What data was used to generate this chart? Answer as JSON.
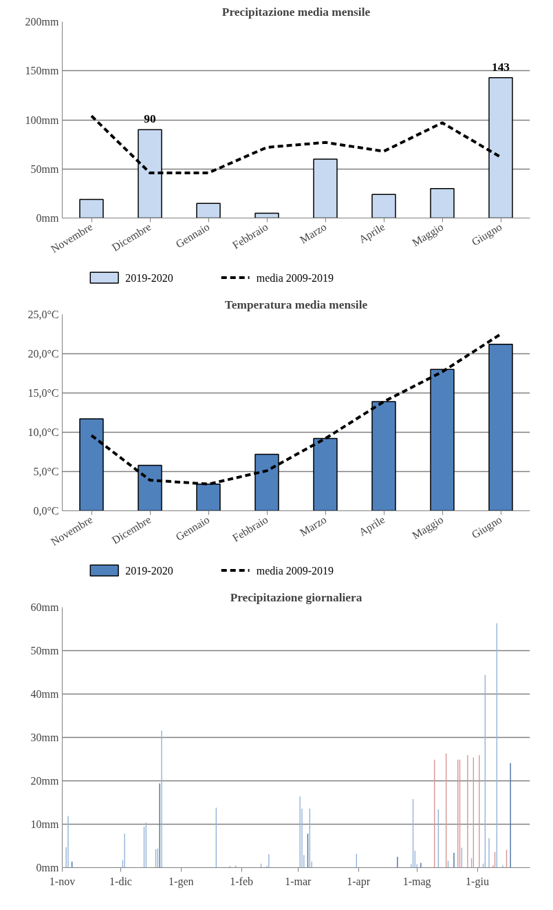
{
  "chart_data": [
    {
      "type": "bar",
      "title": "Precipitazione media mensile",
      "categories": [
        "Novembre",
        "Dicembre",
        "Gennaio",
        "Febbraio",
        "Marzo",
        "Aprile",
        "Maggio",
        "Giugno"
      ],
      "ylim": [
        0,
        200
      ],
      "yticks": [
        {
          "value": 0,
          "label": "0mm"
        },
        {
          "value": 50,
          "label": "50mm"
        },
        {
          "value": 100,
          "label": "100mm"
        },
        {
          "value": 150,
          "label": "150mm"
        },
        {
          "value": 200,
          "label": "200mm"
        }
      ],
      "grid": "y",
      "legend": "bottom",
      "series": [
        {
          "name": "2019-2020",
          "type": "bar",
          "color": "#c6d9f1",
          "values": [
            19,
            90,
            15,
            5,
            60,
            24,
            30,
            143
          ],
          "value_labels": [
            null,
            "90",
            null,
            null,
            null,
            null,
            null,
            "143"
          ]
        },
        {
          "name": "media 2009-2019",
          "type": "line",
          "color": "#000000",
          "line_style": "dashed",
          "values": [
            104,
            46,
            46,
            72,
            77,
            68,
            97,
            62
          ]
        }
      ]
    },
    {
      "type": "bar",
      "title": "Temperatura media mensile",
      "categories": [
        "Novembre",
        "Dicembre",
        "Gennaio",
        "Febbraio",
        "Marzo",
        "Aprile",
        "Maggio",
        "Giugno"
      ],
      "ylim": [
        0,
        25
      ],
      "yticks": [
        {
          "value": 0,
          "label": "0,0°C"
        },
        {
          "value": 5,
          "label": "5,0°C"
        },
        {
          "value": 10,
          "label": "10,0°C"
        },
        {
          "value": 15,
          "label": "15,0°C"
        },
        {
          "value": 20,
          "label": "20,0°C"
        },
        {
          "value": 25,
          "label": "25,0°C"
        }
      ],
      "grid": "y",
      "legend": "bottom",
      "series": [
        {
          "name": "2019-2020",
          "type": "bar",
          "color": "#4f81bd",
          "values": [
            11.7,
            5.8,
            3.4,
            7.2,
            9.2,
            13.9,
            18.0,
            21.2
          ]
        },
        {
          "name": "media 2009-2019",
          "type": "line",
          "color": "#000000",
          "line_style": "dashed",
          "values": [
            9.6,
            3.9,
            3.4,
            5.1,
            9.2,
            13.9,
            17.7,
            22.5
          ]
        }
      ]
    },
    {
      "type": "bar",
      "title": "Precipitazione giornaliera",
      "xlim": [
        "2019-11-01",
        "2020-06-28"
      ],
      "xticks": [
        {
          "value": "2019-11-01",
          "label": "1-nov"
        },
        {
          "value": "2019-12-01",
          "label": "1-dic"
        },
        {
          "value": "2020-01-01",
          "label": "1-gen"
        },
        {
          "value": "2020-02-01",
          "label": "1-feb"
        },
        {
          "value": "2020-03-01",
          "label": "1-mar"
        },
        {
          "value": "2020-04-01",
          "label": "1-apr"
        },
        {
          "value": "2020-05-01",
          "label": "1-mag"
        },
        {
          "value": "2020-06-01",
          "label": "1-giu"
        }
      ],
      "ylim": [
        0,
        60
      ],
      "yticks": [
        {
          "value": 0,
          "label": "0mm"
        },
        {
          "value": 10,
          "label": "10mm"
        },
        {
          "value": 20,
          "label": "20mm"
        },
        {
          "value": 30,
          "label": "30mm"
        },
        {
          "value": 40,
          "label": "40mm"
        },
        {
          "value": 50,
          "label": "50mm"
        },
        {
          "value": 60,
          "label": "60mm"
        }
      ],
      "grid": "y",
      "x": [
        "2019-11-03",
        "2019-11-04",
        "2019-11-06",
        "2019-12-02",
        "2019-12-03",
        "2019-12-13",
        "2019-12-14",
        "2019-12-19",
        "2019-12-20",
        "2019-12-21",
        "2019-12-22",
        "2020-01-19",
        "2020-01-26",
        "2020-01-29",
        "2020-02-11",
        "2020-02-14",
        "2020-02-15",
        "2020-03-02",
        "2020-03-03",
        "2020-03-04",
        "2020-03-06",
        "2020-03-07",
        "2020-03-08",
        "2020-03-31",
        "2020-04-21",
        "2020-04-28",
        "2020-04-29",
        "2020-04-30",
        "2020-05-01",
        "2020-05-03",
        "2020-05-10",
        "2020-05-12",
        "2020-05-16",
        "2020-05-17",
        "2020-05-20",
        "2020-05-22",
        "2020-05-23",
        "2020-05-24",
        "2020-05-27",
        "2020-05-29",
        "2020-05-30",
        "2020-06-02",
        "2020-06-04",
        "2020-06-05",
        "2020-06-07",
        "2020-06-09",
        "2020-06-10",
        "2020-06-11",
        "2020-06-14",
        "2020-06-16",
        "2020-06-18"
      ],
      "values": [
        4.7,
        11.9,
        1.4,
        1.7,
        7.8,
        9.4,
        10.4,
        4.2,
        4.4,
        19.4,
        31.6,
        13.8,
        0.4,
        0.5,
        0.9,
        0.4,
        3.1,
        16.4,
        13.6,
        2.9,
        7.8,
        13.6,
        1.4,
        3.2,
        2.5,
        0.8,
        15.8,
        3.9,
        0.8,
        1.1,
        24.9,
        13.4,
        26.3,
        1.6,
        3.4,
        24.9,
        24.9,
        4.6,
        25.9,
        2.2,
        25.4,
        25.9,
        0.9,
        44.4,
        6.8,
        0.5,
        3.6,
        56.3,
        0.5,
        4.1,
        24.1
      ],
      "colors": [
        "#95b3d7",
        "#95b3d7",
        "#4a6fa5",
        "#95b3d7",
        "#95b3d7",
        "#95b3d7",
        "#95b3d7",
        "#95b3d7",
        "#95b3d7",
        "#4a6fa5",
        "#95b3d7",
        "#95b3d7",
        "#95b3d7",
        "#95b3d7",
        "#95b3d7",
        "#95b3d7",
        "#95b3d7",
        "#95b3d7",
        "#95b3d7",
        "#95b3d7",
        "#4a6fa5",
        "#95b3d7",
        "#95b3d7",
        "#95b3d7",
        "#4a6fa5",
        "#95b3d7",
        "#95b3d7",
        "#95b3d7",
        "#95b3d7",
        "#4a6fa5",
        "#d99694",
        "#95b3d7",
        "#d99694",
        "#95b3d7",
        "#4a6fa5",
        "#d99694",
        "#d99694",
        "#95b3d7",
        "#d99694",
        "#95b3d7",
        "#d99694",
        "#d99694",
        "#95b3d7",
        "#95b3d7",
        "#95b3d7",
        "#d99694",
        "#d99694",
        "#95b3d7",
        "#95b3d7",
        "#d99694",
        "#4a6fa5"
      ]
    }
  ]
}
